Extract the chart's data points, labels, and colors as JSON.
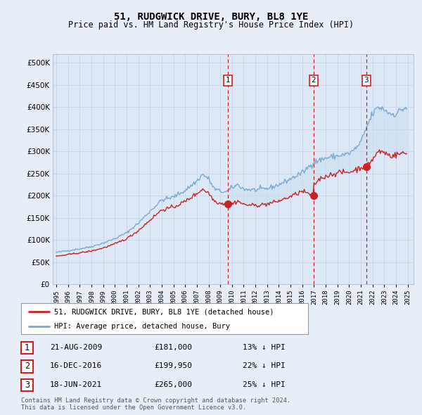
{
  "title": "51, RUDGWICK DRIVE, BURY, BL8 1YE",
  "subtitle": "Price paid vs. HM Land Registry's House Price Index (HPI)",
  "legend_line1": "51, RUDGWICK DRIVE, BURY, BL8 1YE (detached house)",
  "legend_line2": "HPI: Average price, detached house, Bury",
  "footer1": "Contains HM Land Registry data © Crown copyright and database right 2024.",
  "footer2": "This data is licensed under the Open Government Licence v3.0.",
  "transactions": [
    {
      "num": 1,
      "date": "21-AUG-2009",
      "price": "£181,000",
      "hpi": "13% ↓ HPI",
      "year": 2009.63
    },
    {
      "num": 2,
      "date": "16-DEC-2016",
      "price": "£199,950",
      "hpi": "22% ↓ HPI",
      "year": 2016.96
    },
    {
      "num": 3,
      "date": "18-JUN-2021",
      "price": "£265,000",
      "hpi": "25% ↓ HPI",
      "year": 2021.46
    }
  ],
  "transaction_prices": [
    181000,
    199950,
    265000
  ],
  "bg_color": "#e8eef8",
  "plot_bg": "#dce8f5",
  "hpi_color": "#7aaad0",
  "price_color": "#cc2222",
  "vline_color": "#cc2222",
  "ylim": [
    0,
    520000
  ],
  "yticks": [
    0,
    50000,
    100000,
    150000,
    200000,
    250000,
    300000,
    350000,
    400000,
    450000,
    500000
  ],
  "xmin": 1994.7,
  "xmax": 2025.5
}
